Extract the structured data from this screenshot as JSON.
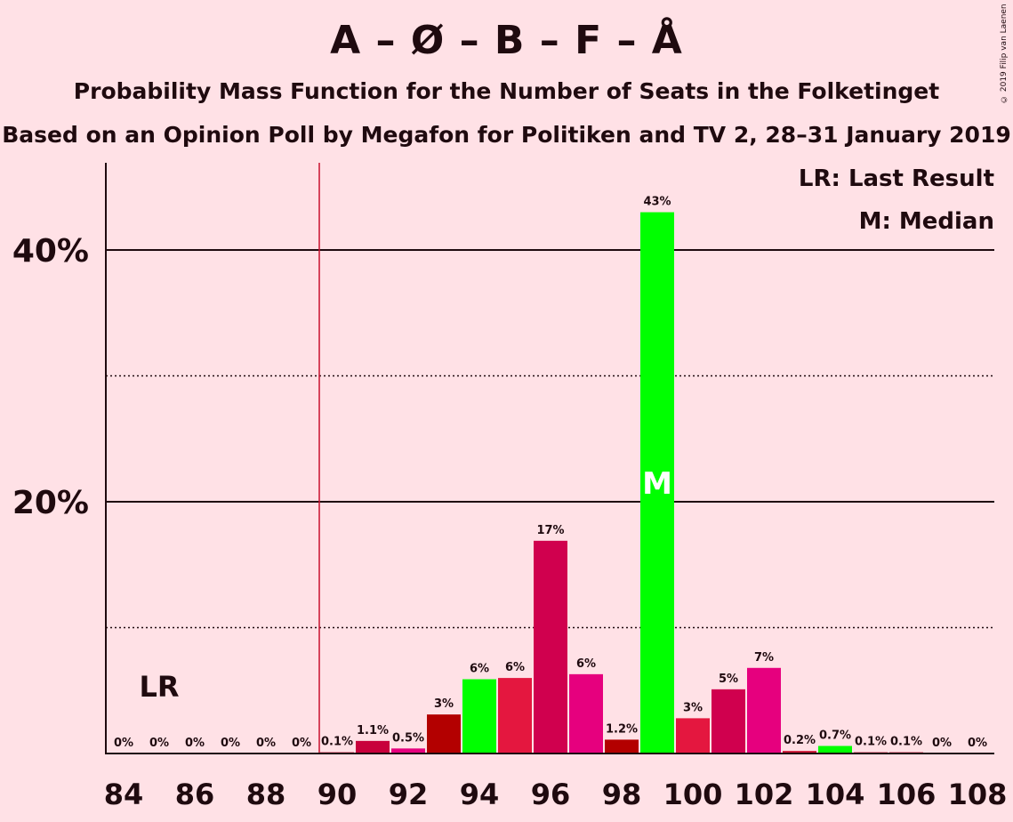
{
  "title": "A – Ø – B – F – Å",
  "subtitle": "Probability Mass Function for the Number of Seats in the Folketinget",
  "subtitle2": "Based on an Opinion Poll by Megafon for Politiken and TV 2, 28–31 January 2019",
  "copyright": "© 2019 Filip van Laenen",
  "legend": {
    "last_result": "LR: Last Result",
    "median": "M: Median"
  },
  "chart_data": {
    "type": "bar",
    "x": [
      84,
      85,
      86,
      87,
      88,
      89,
      90,
      91,
      92,
      93,
      94,
      95,
      96,
      97,
      98,
      99,
      100,
      101,
      102,
      103,
      104,
      105,
      106,
      107,
      108
    ],
    "values": [
      0,
      0,
      0,
      0,
      0,
      0,
      0.1,
      1.1,
      0.5,
      3,
      6,
      6,
      17,
      6,
      1.2,
      43,
      3,
      5,
      7,
      0.2,
      0.7,
      0.1,
      0.1,
      0,
      0
    ],
    "data_labels": [
      "0%",
      "0%",
      "0%",
      "0%",
      "0%",
      "0%",
      "0.1%",
      "1.1%",
      "0.5%",
      "3%",
      "6%",
      "6%",
      "17%",
      "6%",
      "1.2%",
      "43%",
      "3%",
      "5%",
      "7%",
      "0.2%",
      "0.7%",
      "0.1%",
      "0.1%",
      "0%",
      "0%"
    ],
    "estimated_values": [
      0,
      0,
      0,
      0,
      0,
      0,
      0.1,
      1.0,
      0.4,
      3.1,
      5.9,
      6.0,
      16.9,
      6.3,
      1.1,
      43.0,
      2.8,
      5.1,
      6.8,
      0.2,
      0.6,
      0.1,
      0.1,
      0,
      0
    ],
    "colors": [
      "#C8102E",
      "#C8102E",
      "#C8102E",
      "#C8102E",
      "#C8102E",
      "#C8102E",
      "#C8102E",
      "#C8003C",
      "#E6007E",
      "#B30000",
      "#00FF00",
      "#E4173F",
      "#D0004E",
      "#E6007E",
      "#B30000",
      "#00FF00",
      "#E4173F",
      "#D0004E",
      "#E6007E",
      "#C8102E",
      "#00FF00",
      "#C8102E",
      "#C8102E",
      "#C8102E",
      "#C8102E"
    ],
    "x_ticks": [
      84,
      86,
      88,
      90,
      92,
      94,
      96,
      98,
      100,
      102,
      104,
      106,
      108
    ],
    "x_tick_labels": [
      "84",
      "86",
      "88",
      "90",
      "92",
      "94",
      "96",
      "98",
      "100",
      "102",
      "104",
      "106",
      "108"
    ],
    "y_ticks_labeled": [
      20,
      40
    ],
    "y_tick_labels": [
      "20%",
      "40%"
    ],
    "y_gridlines_solid": [
      20,
      40
    ],
    "y_gridlines_dotted": [
      10,
      30
    ],
    "ylim": [
      0,
      47
    ],
    "last_result_seat": 89.5,
    "last_result_label": "LR",
    "last_result_label_seat": 85,
    "median_seat": 99,
    "median_label": "M",
    "median_label_value": 21.5
  }
}
